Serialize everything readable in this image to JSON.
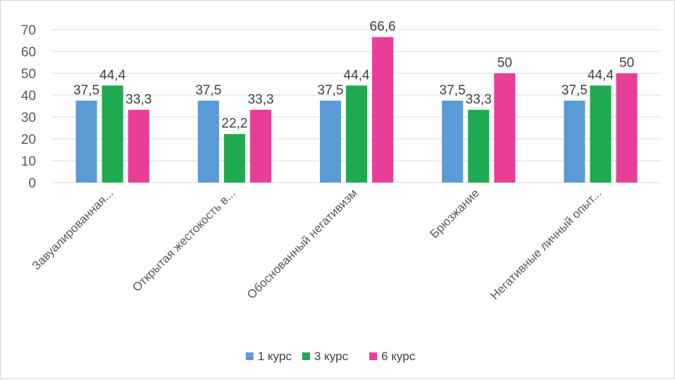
{
  "chart_data": {
    "type": "bar",
    "title": "",
    "xlabel": "",
    "ylabel": "",
    "categories": [
      "Завуалированная...",
      "Открытая жестокость в...",
      "Обоснованный негативизм",
      "Брюзжание",
      "Негативные личный опыт..."
    ],
    "series": [
      {
        "name": "1 курс",
        "color": "#5b9bd5",
        "values": [
          37.5,
          37.5,
          37.5,
          37.5,
          37.5
        ],
        "labels": [
          "37,5",
          "37,5",
          "37,5",
          "37,5",
          "37,5"
        ]
      },
      {
        "name": "3 курс",
        "color": "#1faa4f",
        "values": [
          44.4,
          22.2,
          44.4,
          33.3,
          44.4
        ],
        "labels": [
          "44,4",
          "22,2",
          "44,4",
          "33,3",
          "44,4"
        ]
      },
      {
        "name": "6 курс",
        "color": "#e83e97",
        "values": [
          33.3,
          33.3,
          66.6,
          50,
          50
        ],
        "labels": [
          "33,3",
          "33,3",
          "66,6",
          "50",
          "50"
        ]
      }
    ],
    "ylim": [
      0,
      70
    ],
    "yticks": [
      "0",
      "10",
      "20",
      "30",
      "40",
      "50",
      "60",
      "70"
    ],
    "grid": true,
    "legend": "bottom"
  }
}
